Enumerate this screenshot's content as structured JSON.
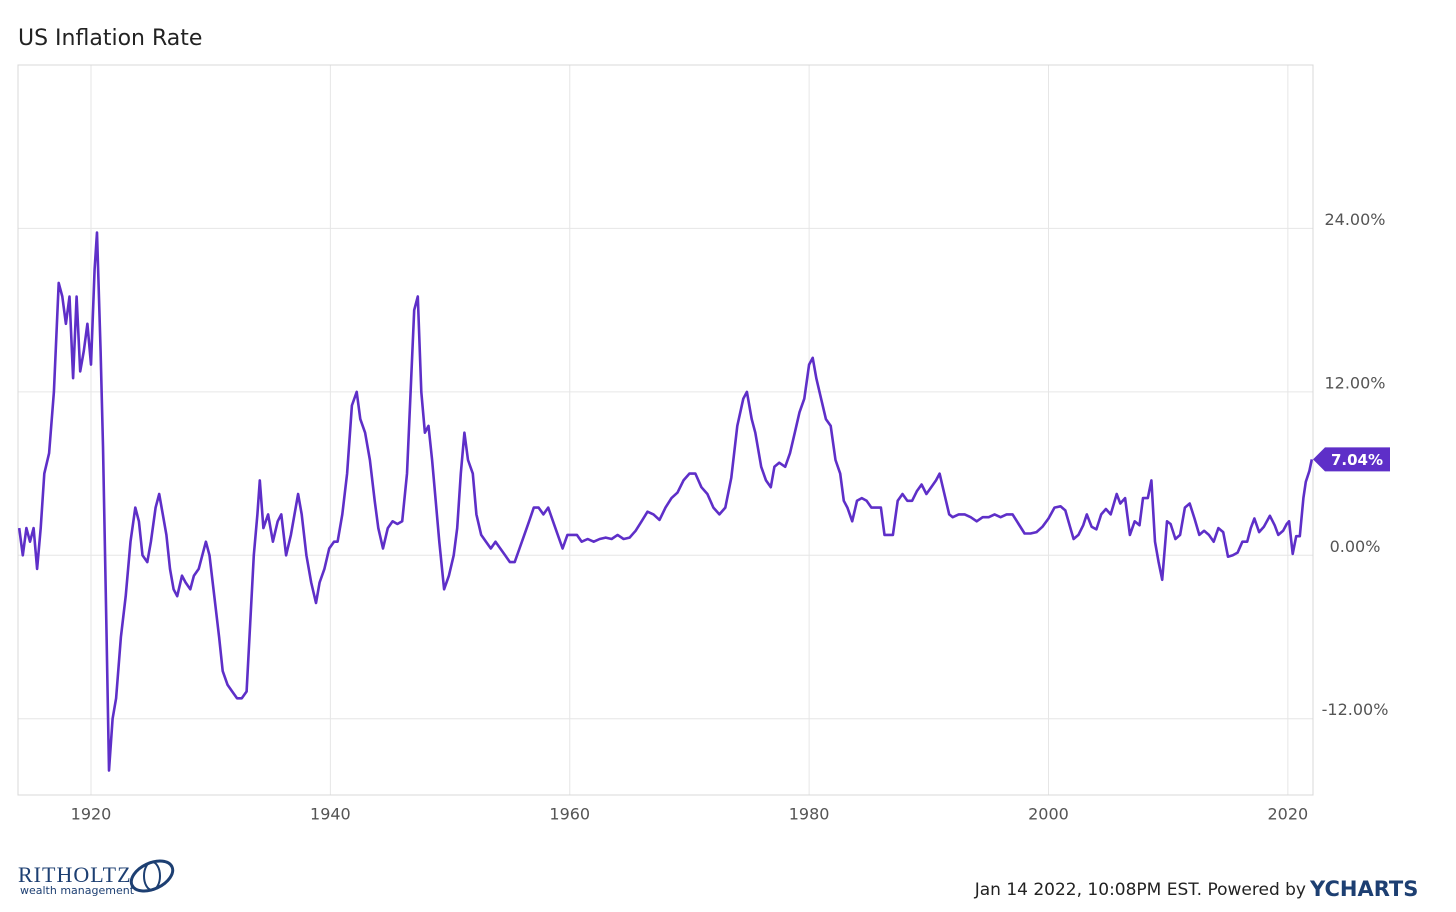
{
  "chart_data": {
    "type": "line",
    "title": "US Inflation Rate",
    "xlim": [
      1913.9,
      2022.1
    ],
    "xticks": [
      1920,
      1940,
      1960,
      1980,
      2000,
      2020
    ],
    "ylim": [
      -17.6,
      36
    ],
    "yticks": [
      {
        "value": -12,
        "label": "-12.00%"
      },
      {
        "value": 0,
        "label": "0.00%"
      },
      {
        "value": 12,
        "label": "12.00%"
      },
      {
        "value": 24,
        "label": "24.00%"
      }
    ],
    "grid": true,
    "series": [
      {
        "color": "#5e2fc8",
        "x": [
          1914.0,
          1914.3,
          1914.6,
          1914.9,
          1915.2,
          1915.5,
          1915.8,
          1916.1,
          1916.5,
          1916.9,
          1917.3,
          1917.6,
          1917.9,
          1918.2,
          1918.5,
          1918.8,
          1919.1,
          1919.4,
          1919.7,
          1920.0,
          1920.3,
          1920.5,
          1920.8,
          1921.0,
          1921.3,
          1921.5,
          1921.8,
          1922.1,
          1922.5,
          1922.9,
          1923.3,
          1923.7,
          1924.0,
          1924.3,
          1924.7,
          1925.0,
          1925.4,
          1925.7,
          1926.0,
          1926.3,
          1926.6,
          1926.9,
          1927.2,
          1927.6,
          1927.9,
          1928.3,
          1928.6,
          1929.0,
          1929.3,
          1929.6,
          1929.9,
          1930.3,
          1930.7,
          1931.0,
          1931.4,
          1931.8,
          1932.2,
          1932.6,
          1933.0,
          1933.3,
          1933.6,
          1933.9,
          1934.1,
          1934.4,
          1934.8,
          1935.2,
          1935.6,
          1935.9,
          1936.3,
          1936.7,
          1937.0,
          1937.3,
          1937.6,
          1938.0,
          1938.4,
          1938.8,
          1939.1,
          1939.5,
          1939.9,
          1940.3,
          1940.6,
          1941.0,
          1941.4,
          1941.8,
          1942.2,
          1942.5,
          1942.9,
          1943.3,
          1943.7,
          1944.0,
          1944.4,
          1944.8,
          1945.2,
          1945.6,
          1946.0,
          1946.4,
          1946.7,
          1947.0,
          1947.3,
          1947.6,
          1947.9,
          1948.2,
          1948.5,
          1948.8,
          1949.1,
          1949.5,
          1949.9,
          1950.3,
          1950.6,
          1950.9,
          1951.2,
          1951.5,
          1951.9,
          1952.2,
          1952.6,
          1953.0,
          1953.4,
          1953.8,
          1954.2,
          1954.6,
          1955.0,
          1955.4,
          1955.8,
          1956.2,
          1956.6,
          1957.0,
          1957.4,
          1957.8,
          1958.2,
          1958.6,
          1959.0,
          1959.4,
          1959.8,
          1960.2,
          1960.6,
          1961.0,
          1961.5,
          1962.0,
          1962.5,
          1963.0,
          1963.5,
          1964.0,
          1964.5,
          1965.0,
          1965.5,
          1966.0,
          1966.5,
          1967.0,
          1967.5,
          1968.0,
          1968.5,
          1969.0,
          1969.5,
          1970.0,
          1970.5,
          1971.0,
          1971.5,
          1972.0,
          1972.5,
          1973.0,
          1973.5,
          1974.0,
          1974.5,
          1974.8,
          1975.2,
          1975.5,
          1976.0,
          1976.4,
          1976.8,
          1977.1,
          1977.5,
          1978.0,
          1978.4,
          1978.8,
          1979.2,
          1979.6,
          1980.0,
          1980.3,
          1980.6,
          1981.0,
          1981.4,
          1981.8,
          1982.2,
          1982.6,
          1982.9,
          1983.2,
          1983.6,
          1984.0,
          1984.4,
          1984.8,
          1985.2,
          1985.6,
          1986.0,
          1986.3,
          1986.7,
          1987.0,
          1987.4,
          1987.8,
          1988.2,
          1988.6,
          1989.0,
          1989.4,
          1989.8,
          1990.2,
          1990.6,
          1990.9,
          1991.3,
          1991.7,
          1992.0,
          1992.5,
          1993.0,
          1993.5,
          1994.0,
          1994.5,
          1995.0,
          1995.5,
          1996.0,
          1996.5,
          1997.0,
          1997.5,
          1998.0,
          1998.5,
          1999.0,
          1999.5,
          2000.0,
          2000.5,
          2001.0,
          2001.4,
          2001.8,
          2002.1,
          2002.5,
          2002.9,
          2003.2,
          2003.6,
          2004.0,
          2004.4,
          2004.8,
          2005.2,
          2005.7,
          2006.0,
          2006.4,
          2006.8,
          2007.2,
          2007.6,
          2007.9,
          2008.3,
          2008.6,
          2008.9,
          2009.2,
          2009.5,
          2009.9,
          2010.2,
          2010.6,
          2011.0,
          2011.4,
          2011.8,
          2012.2,
          2012.6,
          2013.0,
          2013.4,
          2013.8,
          2014.2,
          2014.6,
          2015.0,
          2015.4,
          2015.8,
          2016.2,
          2016.6,
          2016.9,
          2017.2,
          2017.6,
          2018.0,
          2018.5,
          2018.9,
          2019.2,
          2019.6,
          2019.9,
          2020.1,
          2020.4,
          2020.7,
          2021.0,
          2021.3,
          2021.5,
          2021.8,
          2022.0
        ],
        "values": [
          2,
          0,
          2,
          1,
          2,
          -1,
          2,
          6,
          7.5,
          12,
          20,
          19,
          17,
          19,
          13,
          19,
          13.5,
          15,
          17,
          14,
          21,
          23.7,
          15,
          8,
          -6,
          -15.8,
          -12,
          -10.5,
          -6,
          -3,
          1,
          3.5,
          2.5,
          0,
          -0.5,
          1,
          3.5,
          4.5,
          3,
          1.5,
          -1,
          -2.5,
          -3,
          -1.5,
          -2,
          -2.5,
          -1.5,
          -1,
          0,
          1,
          0,
          -3,
          -6,
          -8.5,
          -9.5,
          -10,
          -10.5,
          -10.5,
          -10,
          -5,
          0,
          3,
          5.5,
          2,
          3,
          1,
          2.5,
          3,
          0,
          1.5,
          3,
          4.5,
          3,
          0,
          -2,
          -3.5,
          -2,
          -1,
          0.5,
          1,
          1,
          3,
          6,
          11,
          12,
          10,
          9,
          7,
          4,
          2,
          0.5,
          2,
          2.5,
          2.3,
          2.5,
          6,
          12,
          18,
          19,
          12,
          9,
          9.5,
          7,
          4,
          1,
          -2.5,
          -1.5,
          0,
          2,
          6,
          9,
          7,
          6,
          3,
          1.5,
          1,
          0.5,
          1,
          0.5,
          0,
          -0.5,
          -0.5,
          0.5,
          1.5,
          2.5,
          3.5,
          3.5,
          3,
          3.5,
          2.5,
          1.5,
          0.5,
          1.5,
          1.5,
          1.5,
          1,
          1.2,
          1,
          1.2,
          1.3,
          1.2,
          1.5,
          1.2,
          1.3,
          1.8,
          2.5,
          3.2,
          3,
          2.6,
          3.5,
          4.2,
          4.6,
          5.5,
          6,
          6,
          5,
          4.5,
          3.5,
          3,
          3.5,
          5.7,
          9.5,
          11.5,
          12,
          10,
          9,
          6.5,
          5.5,
          5,
          6.5,
          6.8,
          6.5,
          7.5,
          9,
          10.5,
          11.5,
          14,
          14.5,
          13,
          11.5,
          10,
          9.5,
          7,
          6,
          4,
          3.5,
          2.5,
          4,
          4.2,
          4,
          3.5,
          3.5,
          3.5,
          1.5,
          1.5,
          1.5,
          4,
          4.5,
          4,
          4,
          4.7,
          5.2,
          4.5,
          5,
          5.5,
          6,
          4.5,
          3,
          2.8,
          3,
          3,
          2.8,
          2.5,
          2.8,
          2.8,
          3,
          2.8,
          3,
          3,
          2.3,
          1.6,
          1.6,
          1.7,
          2.1,
          2.7,
          3.5,
          3.6,
          3.3,
          2.1,
          1.2,
          1.5,
          2.2,
          3,
          2.1,
          1.9,
          3,
          3.4,
          3,
          4.5,
          3.8,
          4.2,
          1.5,
          2.5,
          2.2,
          4.2,
          4.2,
          5.5,
          1,
          -0.5,
          -1.8,
          2.5,
          2.3,
          1.2,
          1.5,
          3.5,
          3.8,
          2.7,
          1.5,
          1.8,
          1.5,
          1,
          2,
          1.7,
          -0.1,
          0,
          0.2,
          1,
          1,
          2,
          2.7,
          1.7,
          2.1,
          2.9,
          2.2,
          1.5,
          1.8,
          2.3,
          2.5,
          0.1,
          1.4,
          1.4,
          4.2,
          5.4,
          6.2,
          7.04
        ],
        "last_value_label": "7.04%"
      }
    ]
  },
  "footer": {
    "logo_name": "RITHOLTZ",
    "logo_sub": "wealth management",
    "timestamp": "Jan 14 2022, 10:08PM EST. Powered by",
    "brand": "YCHARTS"
  }
}
